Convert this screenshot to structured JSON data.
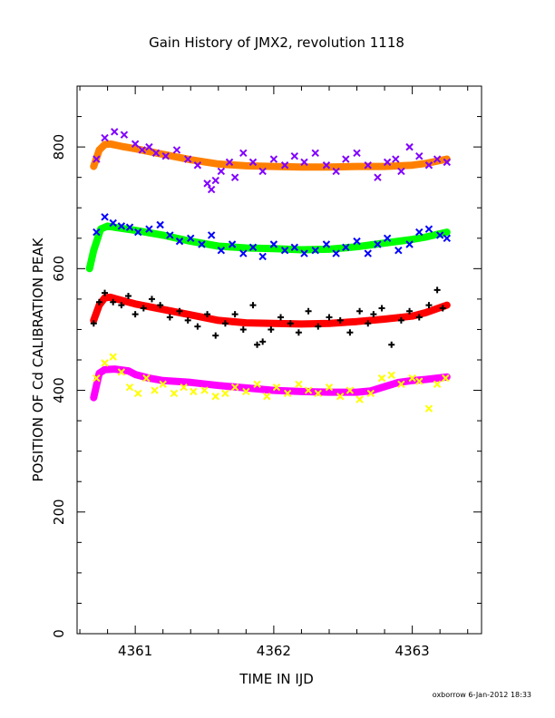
{
  "chart_data": {
    "type": "scatter",
    "title": "Gain History of JMX2, revolution 1118",
    "xlabel": "TIME IN IJD",
    "ylabel": "POSITION OF Cd CALIBRATION PEAK",
    "xlim": [
      4360.58,
      4363.5
    ],
    "ylim": [
      0,
      900
    ],
    "xticks": [
      "4361",
      "4362",
      "4363"
    ],
    "yticks": [
      "0",
      "200",
      "400",
      "600",
      "800"
    ],
    "grid": false,
    "footer": "oxborrow   6-Jan-2012 18:33",
    "series": [
      {
        "kind": "trend",
        "color": "#ff8000",
        "x": [
          4360.7,
          4360.74,
          4360.78,
          4360.82,
          4360.9,
          4361.0,
          4361.2,
          4361.4,
          4361.6,
          4361.8,
          4362.0,
          4362.2,
          4362.4,
          4362.6,
          4362.8,
          4363.0,
          4363.1,
          4363.25
        ],
        "y": [
          768,
          795,
          804,
          805,
          801,
          797,
          788,
          779,
          772,
          769,
          768,
          767,
          767,
          768,
          768,
          770,
          773,
          780
        ]
      },
      {
        "kind": "points",
        "color": "#8000ff",
        "x": [
          4360.72,
          4360.78,
          4360.85,
          4360.92,
          4361.0,
          4361.05,
          4361.1,
          4361.15,
          4361.22,
          4361.3,
          4361.38,
          4361.45,
          4361.52,
          4361.55,
          4361.58,
          4361.62,
          4361.68,
          4361.72,
          4361.78,
          4361.85,
          4361.92,
          4362.0,
          4362.08,
          4362.15,
          4362.22,
          4362.3,
          4362.38,
          4362.45,
          4362.52,
          4362.6,
          4362.68,
          4362.75,
          4362.82,
          4362.88,
          4362.92,
          4362.98,
          4363.05,
          4363.12,
          4363.18,
          4363.25
        ],
        "y": [
          780,
          815,
          825,
          820,
          805,
          795,
          800,
          790,
          785,
          795,
          780,
          770,
          740,
          730,
          745,
          760,
          775,
          750,
          790,
          775,
          760,
          780,
          770,
          785,
          775,
          790,
          770,
          760,
          780,
          790,
          770,
          750,
          775,
          780,
          760,
          800,
          785,
          770,
          780,
          775
        ]
      },
      {
        "kind": "trend",
        "color": "#00ff00",
        "x": [
          4360.67,
          4360.7,
          4360.75,
          4360.8,
          4360.85,
          4361.0,
          4361.2,
          4361.4,
          4361.6,
          4361.8,
          4362.0,
          4362.2,
          4362.4,
          4362.6,
          4362.8,
          4363.0,
          4363.1,
          4363.25
        ],
        "y": [
          600,
          630,
          665,
          670,
          668,
          663,
          655,
          645,
          637,
          634,
          633,
          631,
          632,
          636,
          642,
          648,
          652,
          660
        ]
      },
      {
        "kind": "points",
        "color": "#0000ff",
        "x": [
          4360.72,
          4360.78,
          4360.84,
          4360.9,
          4360.96,
          4361.02,
          4361.1,
          4361.18,
          4361.25,
          4361.32,
          4361.4,
          4361.48,
          4361.55,
          4361.62,
          4361.7,
          4361.78,
          4361.85,
          4361.92,
          4362.0,
          4362.08,
          4362.15,
          4362.22,
          4362.3,
          4362.38,
          4362.45,
          4362.52,
          4362.6,
          4362.68,
          4362.75,
          4362.82,
          4362.9,
          4362.98,
          4363.05,
          4363.12,
          4363.2,
          4363.25
        ],
        "y": [
          660,
          685,
          675,
          670,
          668,
          660,
          665,
          672,
          655,
          645,
          650,
          640,
          655,
          630,
          640,
          625,
          635,
          620,
          640,
          630,
          635,
          625,
          630,
          640,
          625,
          635,
          645,
          625,
          640,
          650,
          630,
          640,
          660,
          665,
          655,
          650
        ]
      },
      {
        "kind": "trend",
        "color": "#ff0000",
        "x": [
          4360.7,
          4360.74,
          4360.78,
          4360.82,
          4360.9,
          4361.0,
          4361.2,
          4361.4,
          4361.6,
          4361.8,
          4362.0,
          4362.2,
          4362.4,
          4362.6,
          4362.8,
          4363.0,
          4363.1,
          4363.25
        ],
        "y": [
          515,
          540,
          552,
          553,
          548,
          542,
          533,
          524,
          515,
          511,
          510,
          509,
          510,
          513,
          517,
          522,
          528,
          540
        ]
      },
      {
        "kind": "points",
        "color": "#000000",
        "x": [
          4360.7,
          4360.74,
          4360.78,
          4360.84,
          4360.9,
          4360.95,
          4361.0,
          4361.06,
          4361.12,
          4361.18,
          4361.25,
          4361.32,
          4361.38,
          4361.45,
          4361.52,
          4361.58,
          4361.65,
          4361.72,
          4361.78,
          4361.85,
          4361.88,
          4361.92,
          4361.98,
          4362.05,
          4362.12,
          4362.18,
          4362.25,
          4362.32,
          4362.4,
          4362.48,
          4362.55,
          4362.62,
          4362.68,
          4362.72,
          4362.78,
          4362.85,
          4362.92,
          4362.98,
          4363.05,
          4363.12,
          4363.18,
          4363.22
        ],
        "y": [
          510,
          545,
          560,
          545,
          540,
          555,
          525,
          535,
          550,
          540,
          520,
          530,
          515,
          505,
          525,
          490,
          510,
          525,
          500,
          540,
          475,
          480,
          500,
          520,
          510,
          495,
          530,
          505,
          520,
          515,
          495,
          530,
          510,
          525,
          535,
          475,
          515,
          530,
          520,
          540,
          565,
          535
        ]
      },
      {
        "kind": "trend",
        "color": "#ff00ff",
        "x": [
          4360.7,
          4360.74,
          4360.78,
          4360.85,
          4360.95,
          4361.0,
          4361.1,
          4361.2,
          4361.4,
          4361.6,
          4361.8,
          4362.0,
          4362.2,
          4362.4,
          4362.6,
          4362.7,
          4362.8,
          4362.9,
          4363.0,
          4363.1,
          4363.25
        ],
        "y": [
          388,
          428,
          434,
          435,
          432,
          426,
          420,
          416,
          413,
          408,
          404,
          400,
          398,
          397,
          397,
          399,
          406,
          413,
          416,
          418,
          422
        ]
      },
      {
        "kind": "points",
        "color": "#ffff00",
        "x": [
          4360.72,
          4360.78,
          4360.84,
          4360.9,
          4360.96,
          4361.02,
          4361.08,
          4361.14,
          4361.2,
          4361.28,
          4361.35,
          4361.42,
          4361.5,
          4361.58,
          4361.65,
          4361.72,
          4361.8,
          4361.88,
          4361.95,
          4362.02,
          4362.1,
          4362.18,
          4362.25,
          4362.32,
          4362.4,
          4362.48,
          4362.55,
          4362.62,
          4362.7,
          4362.78,
          4362.85,
          4362.92,
          4363.0,
          4363.05,
          4363.12,
          4363.18,
          4363.24
        ],
        "y": [
          420,
          445,
          455,
          430,
          405,
          395,
          420,
          400,
          410,
          395,
          405,
          398,
          400,
          390,
          395,
          405,
          398,
          410,
          390,
          405,
          395,
          410,
          400,
          395,
          405,
          390,
          400,
          385,
          395,
          420,
          425,
          410,
          420,
          415,
          370,
          410,
          420
        ]
      }
    ]
  }
}
